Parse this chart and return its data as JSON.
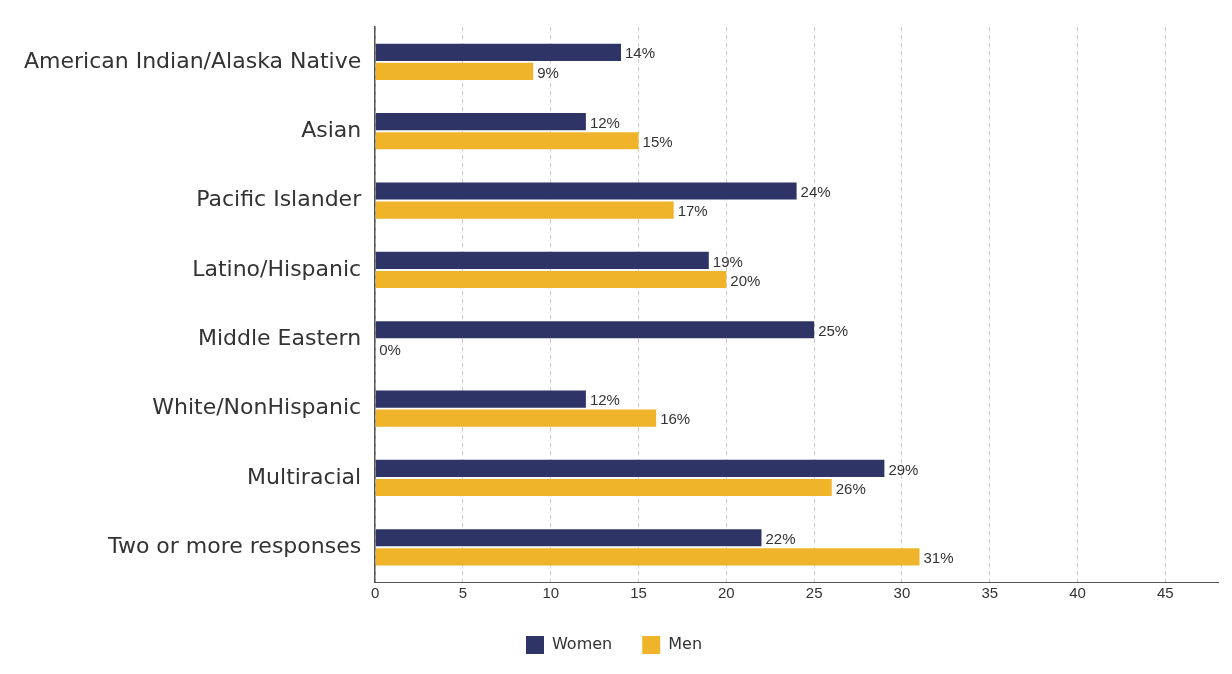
{
  "chart_data": {
    "type": "bar",
    "orientation": "horizontal",
    "categories": [
      "American Indian/Alaska Native",
      "Asian",
      "Pacific Islander",
      "Latino/Hispanic",
      "Middle Eastern",
      "White/NonHispanic",
      "Multiracial",
      "Two or more responses"
    ],
    "series": [
      {
        "name": "Women",
        "color": "#2e3566",
        "values": [
          14,
          12,
          24,
          19,
          25,
          12,
          29,
          22
        ],
        "value_labels": [
          "14%",
          "12%",
          "24%",
          "19%",
          "25%",
          "12%",
          "29%",
          "22%"
        ]
      },
      {
        "name": "Men",
        "color": "#f0b42a",
        "values": [
          9,
          15,
          17,
          20,
          0,
          16,
          26,
          31
        ],
        "value_labels": [
          "9%",
          "15%",
          "17%",
          "20%",
          "0%",
          "16%",
          "26%",
          "31%"
        ]
      }
    ],
    "xlim": [
      0,
      48
    ],
    "xticks": [
      0,
      5,
      10,
      15,
      20,
      25,
      30,
      35,
      40,
      45
    ],
    "grid": "x",
    "legend": "bottom"
  }
}
